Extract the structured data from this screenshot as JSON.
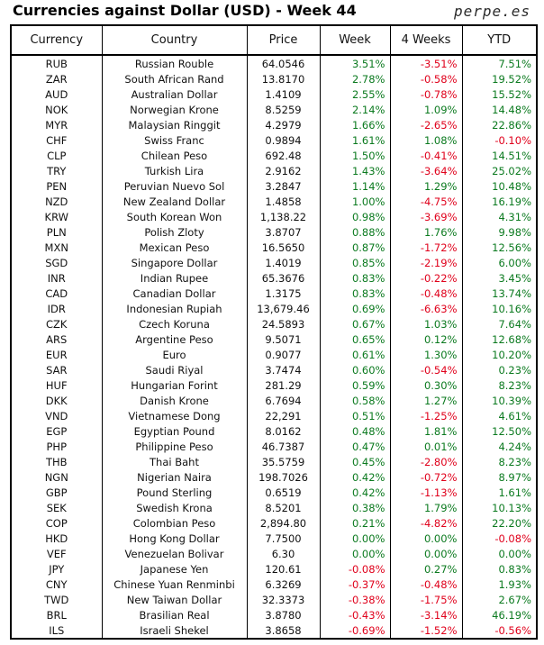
{
  "header": {
    "title": "Currencies against Dollar (USD) - Week 44",
    "brand": "perpe.es"
  },
  "colors": {
    "positive": "#0b7a1f",
    "negative": "#e0001b"
  },
  "table": {
    "columns": [
      "Currency",
      "Country",
      "Price",
      "Week",
      "4 Weeks",
      "YTD"
    ],
    "rows": [
      [
        "RUB",
        "Russian Rouble",
        "64.0546",
        "3.51%",
        "-3.51%",
        "7.51%"
      ],
      [
        "ZAR",
        "South African Rand",
        "13.8170",
        "2.78%",
        "-0.58%",
        "19.52%"
      ],
      [
        "AUD",
        "Australian Dollar",
        "1.4109",
        "2.55%",
        "-0.78%",
        "15.52%"
      ],
      [
        "NOK",
        "Norwegian Krone",
        "8.5259",
        "2.14%",
        "1.09%",
        "14.48%"
      ],
      [
        "MYR",
        "Malaysian Ringgit",
        "4.2979",
        "1.66%",
        "-2.65%",
        "22.86%"
      ],
      [
        "CHF",
        "Swiss Franc",
        "0.9894",
        "1.61%",
        "1.08%",
        "-0.10%"
      ],
      [
        "CLP",
        "Chilean Peso",
        "692.48",
        "1.50%",
        "-0.41%",
        "14.51%"
      ],
      [
        "TRY",
        "Turkish Lira",
        "2.9162",
        "1.43%",
        "-3.64%",
        "25.02%"
      ],
      [
        "PEN",
        "Peruvian Nuevo Sol",
        "3.2847",
        "1.14%",
        "1.29%",
        "10.48%"
      ],
      [
        "NZD",
        "New Zealand Dollar",
        "1.4858",
        "1.00%",
        "-4.75%",
        "16.19%"
      ],
      [
        "KRW",
        "South Korean Won",
        "1,138.22",
        "0.98%",
        "-3.69%",
        "4.31%"
      ],
      [
        "PLN",
        "Polish Zloty",
        "3.8707",
        "0.88%",
        "1.76%",
        "9.98%"
      ],
      [
        "MXN",
        "Mexican Peso",
        "16.5650",
        "0.87%",
        "-1.72%",
        "12.56%"
      ],
      [
        "SGD",
        "Singapore Dollar",
        "1.4019",
        "0.85%",
        "-2.19%",
        "6.00%"
      ],
      [
        "INR",
        "Indian Rupee",
        "65.3676",
        "0.83%",
        "-0.22%",
        "3.45%"
      ],
      [
        "CAD",
        "Canadian Dollar",
        "1.3175",
        "0.83%",
        "-0.48%",
        "13.74%"
      ],
      [
        "IDR",
        "Indonesian Rupiah",
        "13,679.46",
        "0.69%",
        "-6.63%",
        "10.16%"
      ],
      [
        "CZK",
        "Czech Koruna",
        "24.5893",
        "0.67%",
        "1.03%",
        "7.64%"
      ],
      [
        "ARS",
        "Argentine Peso",
        "9.5071",
        "0.65%",
        "0.12%",
        "12.68%"
      ],
      [
        "EUR",
        "Euro",
        "0.9077",
        "0.61%",
        "1.30%",
        "10.20%"
      ],
      [
        "SAR",
        "Saudi Riyal",
        "3.7474",
        "0.60%",
        "-0.54%",
        "0.23%"
      ],
      [
        "HUF",
        "Hungarian Forint",
        "281.29",
        "0.59%",
        "0.30%",
        "8.23%"
      ],
      [
        "DKK",
        "Danish Krone",
        "6.7694",
        "0.58%",
        "1.27%",
        "10.39%"
      ],
      [
        "VND",
        "Vietnamese Dong",
        "22,291",
        "0.51%",
        "-1.25%",
        "4.61%"
      ],
      [
        "EGP",
        "Egyptian Pound",
        "8.0162",
        "0.48%",
        "1.81%",
        "12.50%"
      ],
      [
        "PHP",
        "Philippine Peso",
        "46.7387",
        "0.47%",
        "0.01%",
        "4.24%"
      ],
      [
        "THB",
        "Thai Baht",
        "35.5759",
        "0.45%",
        "-2.80%",
        "8.23%"
      ],
      [
        "NGN",
        "Nigerian Naira",
        "198.7026",
        "0.42%",
        "-0.72%",
        "8.97%"
      ],
      [
        "GBP",
        "Pound Sterling",
        "0.6519",
        "0.42%",
        "-1.13%",
        "1.61%"
      ],
      [
        "SEK",
        "Swedish Krona",
        "8.5201",
        "0.38%",
        "1.79%",
        "10.13%"
      ],
      [
        "COP",
        "Colombian Peso",
        "2,894.80",
        "0.21%",
        "-4.82%",
        "22.20%"
      ],
      [
        "HKD",
        "Hong Kong Dollar",
        "7.7500",
        "0.00%",
        "0.00%",
        "-0.08%"
      ],
      [
        "VEF",
        "Venezuelan Bolivar",
        "6.30",
        "0.00%",
        "0.00%",
        "0.00%"
      ],
      [
        "JPY",
        "Japanese Yen",
        "120.61",
        "-0.08%",
        "0.27%",
        "0.83%"
      ],
      [
        "CNY",
        "Chinese Yuan Renminbi",
        "6.3269",
        "-0.37%",
        "-0.48%",
        "1.93%"
      ],
      [
        "TWD",
        "New Taiwan Dollar",
        "32.3373",
        "-0.38%",
        "-1.75%",
        "2.67%"
      ],
      [
        "BRL",
        "Brasilian Real",
        "3.8780",
        "-0.43%",
        "-3.14%",
        "46.19%"
      ],
      [
        "ILS",
        "Israeli Shekel",
        "3.8658",
        "-0.69%",
        "-1.52%",
        "-0.56%"
      ]
    ]
  }
}
